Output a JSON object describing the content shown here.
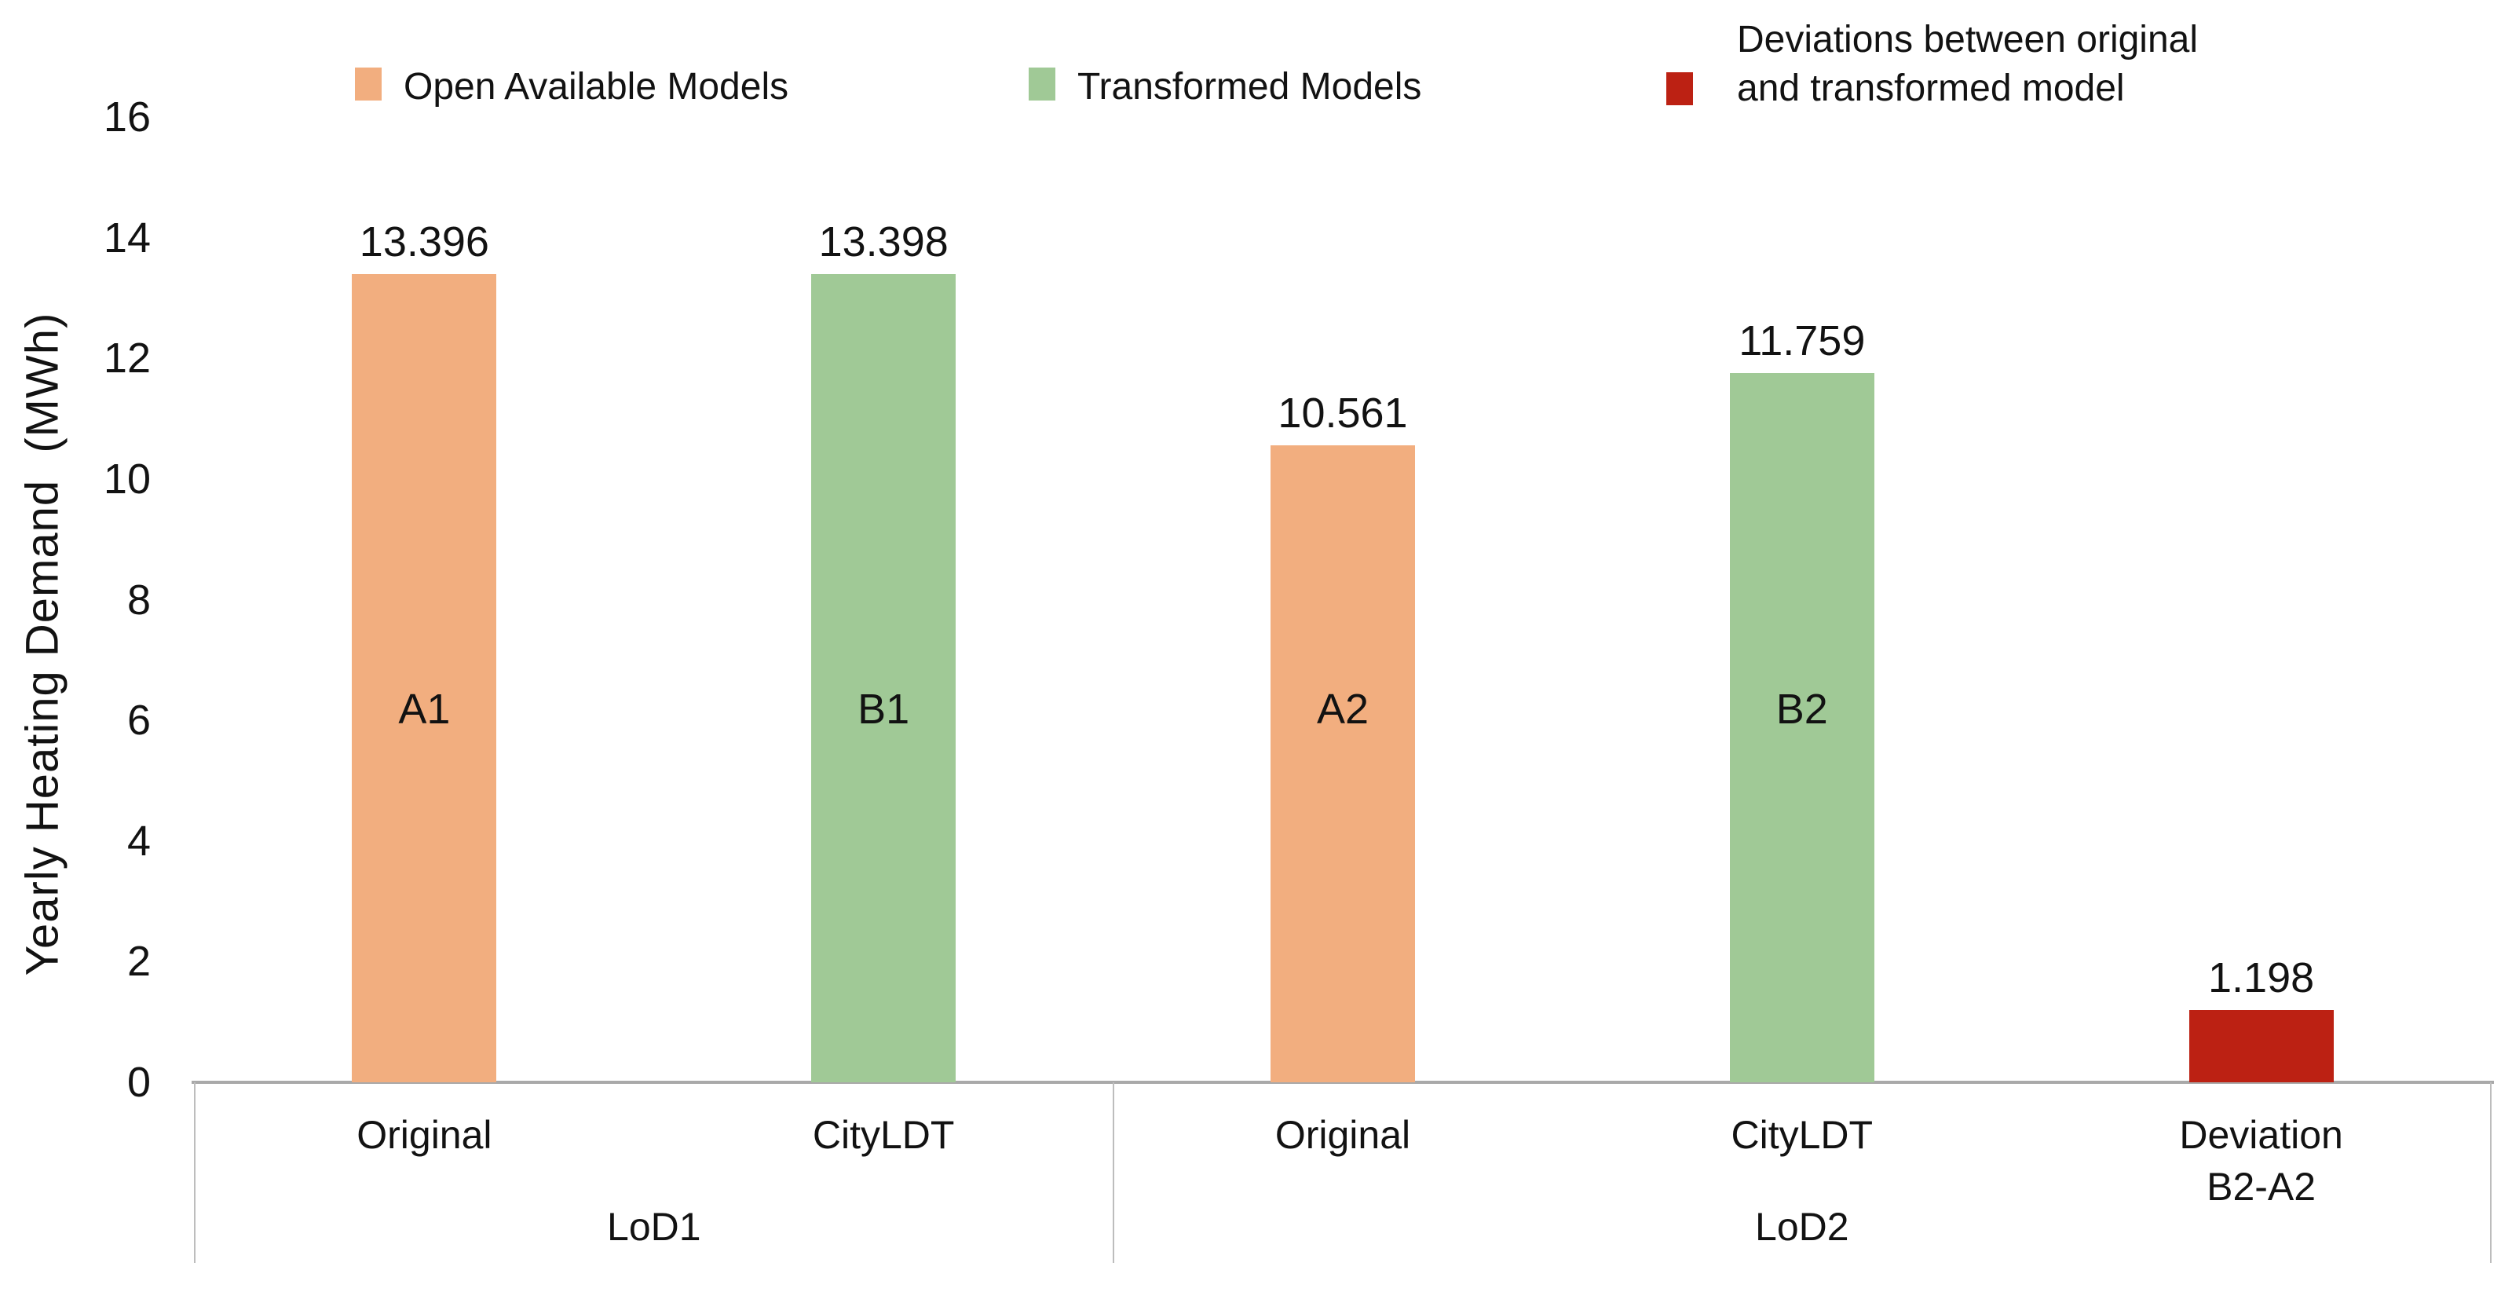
{
  "chart_data": {
    "type": "bar",
    "title": "",
    "ylabel": "Yearly Heating Demand  (MWh)",
    "ylim": [
      0,
      16
    ],
    "yticks": [
      0,
      2,
      4,
      6,
      8,
      10,
      12,
      14,
      16
    ],
    "grid": false,
    "legend_position": "top",
    "legend": [
      {
        "label": "Open Available Models",
        "color": "#F2AE7F"
      },
      {
        "label": "Transformed Models",
        "color": "#A0C996"
      },
      {
        "label": "Deviations between original\nand transformed model",
        "color": "#BC2113"
      }
    ],
    "categories": [
      "Original",
      "CityLDT",
      "Original",
      "CityLDT",
      "Deviation\nB2-A2"
    ],
    "bars": [
      {
        "category": "Original",
        "group": "LoD1",
        "inner_label": "A1",
        "value": 13.396,
        "value_label": "13.396",
        "series": "Open Available Models",
        "color": "#F2AE7F"
      },
      {
        "category": "CityLDT",
        "group": "LoD1",
        "inner_label": "B1",
        "value": 13.398,
        "value_label": "13.398",
        "series": "Transformed Models",
        "color": "#A0C996"
      },
      {
        "category": "Original",
        "group": "LoD2",
        "inner_label": "A2",
        "value": 10.561,
        "value_label": "10.561",
        "series": "Open Available Models",
        "color": "#F2AE7F"
      },
      {
        "category": "CityLDT",
        "group": "LoD2",
        "inner_label": "B2",
        "value": 11.759,
        "value_label": "11.759",
        "series": "Transformed Models",
        "color": "#A0C996"
      },
      {
        "category": "Deviation\nB2-A2",
        "group": "",
        "inner_label": "",
        "value": 1.198,
        "value_label": "1.198",
        "series": "Deviations between original and transformed model",
        "color": "#BC2113"
      }
    ],
    "axis_groups": [
      {
        "label": "LoD1",
        "span": [
          0,
          2
        ]
      },
      {
        "label": "LoD2",
        "span": [
          2,
          5
        ]
      }
    ],
    "colors": {
      "open_available": "#F2AE7F",
      "transformed": "#A0C996",
      "deviation": "#BC2113",
      "axis_line": "#A9A9A9",
      "divider": "#BDBDBD",
      "text": "#121212"
    }
  }
}
